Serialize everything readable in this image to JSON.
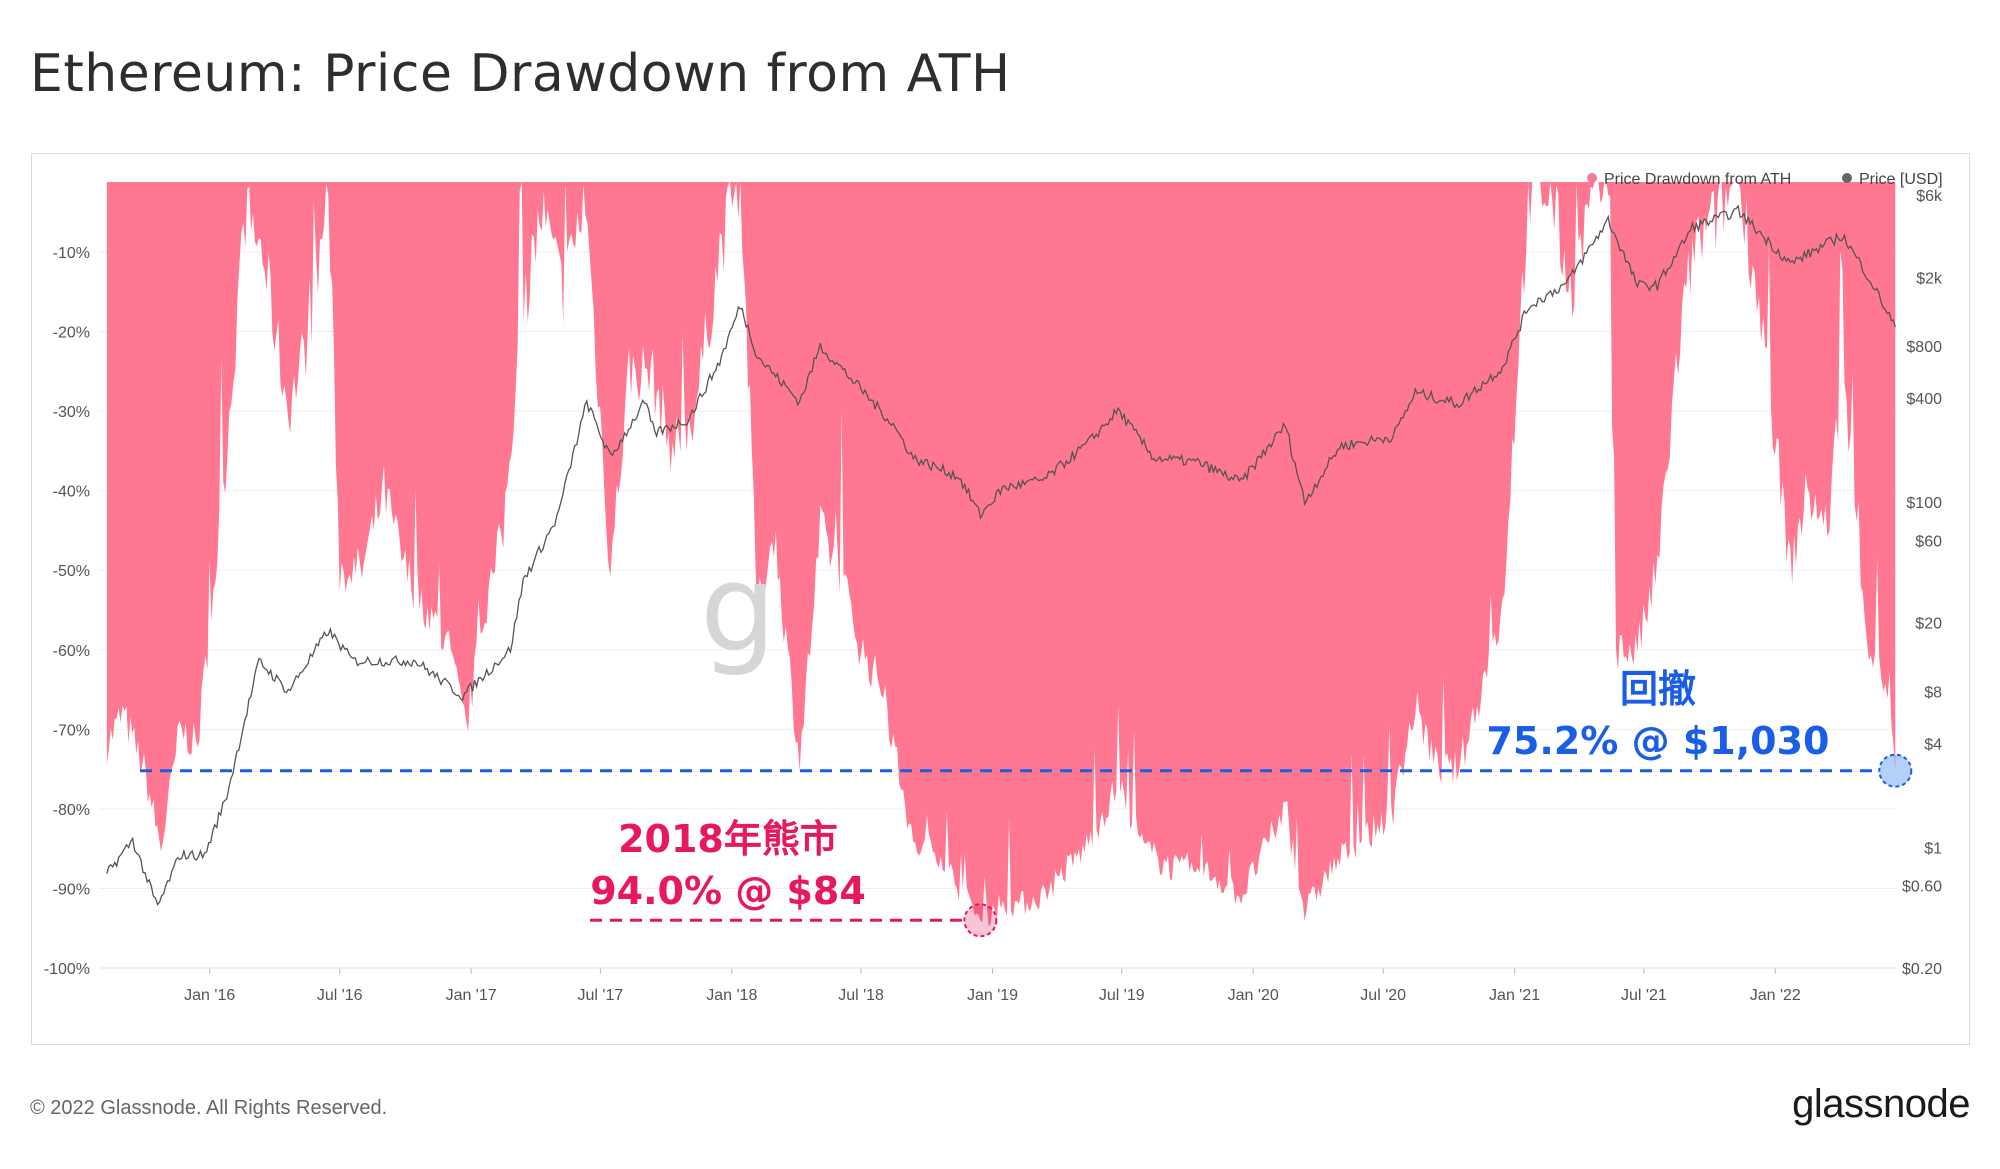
{
  "title": "Ethereum: Price Drawdown from ATH",
  "footer": "© 2022 Glassnode. All Rights Reserved.",
  "brand": "glassnode",
  "watermark": "g",
  "colors": {
    "drawdown": "#ff7790",
    "price": "#555555",
    "red": "#e8185c",
    "blue": "#1a5ee8"
  },
  "chart_data": {
    "type": "area",
    "legend": [
      {
        "name": "Price Drawdown from ATH",
        "color": "#f07d92"
      },
      {
        "name": "Price [USD]",
        "color": "#666666"
      }
    ],
    "legend_position": "top-right",
    "x_ticks": [
      "Jan '16",
      "Jul '16",
      "Jan '17",
      "Jul '17",
      "Jan '18",
      "Jul '18",
      "Jan '19",
      "Jul '19",
      "Jan '20",
      "Jul '20",
      "Jan '21",
      "Jul '21",
      "Jan '22"
    ],
    "y_left_ticks": [
      "-10%",
      "-20%",
      "-30%",
      "-40%",
      "-50%",
      "-60%",
      "-70%",
      "-80%",
      "-90%",
      "-100%"
    ],
    "y_right_ticks": [
      "$6k",
      "$2k",
      "$800",
      "$400",
      "$100",
      "$60",
      "$20",
      "$8",
      "$4",
      "$1",
      "$0.60",
      "$0.20"
    ],
    "y_left_range": [
      0,
      -100
    ],
    "y_right_scale": "log",
    "grid": true,
    "drawdown_series": {
      "name": "Price Drawdown from ATH",
      "points": [
        [
          "2015-08-10",
          -72
        ],
        [
          "2015-09-01",
          -68
        ],
        [
          "2015-10-01",
          -75
        ],
        [
          "2015-10-25",
          -85
        ],
        [
          "2015-11-20",
          -70
        ],
        [
          "2015-12-15",
          -72
        ],
        [
          "2016-01-20",
          -40
        ],
        [
          "2016-02-20",
          -5
        ],
        [
          "2016-03-15",
          -10
        ],
        [
          "2016-04-20",
          -30
        ],
        [
          "2016-05-20",
          -20
        ],
        [
          "2016-06-15",
          -2
        ],
        [
          "2016-07-01",
          -50
        ],
        [
          "2016-08-01",
          -50
        ],
        [
          "2016-09-01",
          -40
        ],
        [
          "2016-10-01",
          -50
        ],
        [
          "2016-11-01",
          -55
        ],
        [
          "2016-12-01",
          -60
        ],
        [
          "2016-12-25",
          -70
        ],
        [
          "2017-01-20",
          -55
        ],
        [
          "2017-02-15",
          -45
        ],
        [
          "2017-03-10",
          -20
        ],
        [
          "2017-04-10",
          -5
        ],
        [
          "2017-05-10",
          -15
        ],
        [
          "2017-06-10",
          -3
        ],
        [
          "2017-07-15",
          -50
        ],
        [
          "2017-08-10",
          -25
        ],
        [
          "2017-09-10",
          -25
        ],
        [
          "2017-10-10",
          -35
        ],
        [
          "2017-11-10",
          -30
        ],
        [
          "2017-12-15",
          -10
        ],
        [
          "2018-01-13",
          0
        ],
        [
          "2018-02-06",
          -55
        ],
        [
          "2018-03-01",
          -45
        ],
        [
          "2018-04-06",
          -74
        ],
        [
          "2018-05-05",
          -45
        ],
        [
          "2018-06-01",
          -50
        ],
        [
          "2018-07-01",
          -60
        ],
        [
          "2018-08-01",
          -65
        ],
        [
          "2018-09-12",
          -85
        ],
        [
          "2018-10-15",
          -85
        ],
        [
          "2018-11-15",
          -90
        ],
        [
          "2018-12-15",
          -94
        ],
        [
          "2019-01-10",
          -92
        ],
        [
          "2019-02-10",
          -92
        ],
        [
          "2019-03-10",
          -91
        ],
        [
          "2019-04-10",
          -88
        ],
        [
          "2019-05-10",
          -85
        ],
        [
          "2019-06-26",
          -77
        ],
        [
          "2019-08-01",
          -85
        ],
        [
          "2019-09-01",
          -87
        ],
        [
          "2019-10-01",
          -88
        ],
        [
          "2019-11-01",
          -88
        ],
        [
          "2019-12-15",
          -91
        ],
        [
          "2020-02-15",
          -80
        ],
        [
          "2020-03-13",
          -93
        ],
        [
          "2020-04-15",
          -88
        ],
        [
          "2020-05-15",
          -85
        ],
        [
          "2020-06-15",
          -83
        ],
        [
          "2020-07-15",
          -80
        ],
        [
          "2020-08-15",
          -67
        ],
        [
          "2020-09-15",
          -75
        ],
        [
          "2020-10-15",
          -75
        ],
        [
          "2020-11-15",
          -65
        ],
        [
          "2020-12-15",
          -55
        ],
        [
          "2021-01-20",
          -3
        ],
        [
          "2021-02-20",
          -2
        ],
        [
          "2021-03-20",
          -15
        ],
        [
          "2021-04-15",
          -5
        ],
        [
          "2021-05-12",
          0
        ],
        [
          "2021-05-23",
          -60
        ],
        [
          "2021-06-22",
          -60
        ],
        [
          "2021-07-20",
          -50
        ],
        [
          "2021-08-15",
          -25
        ],
        [
          "2021-09-07",
          -10
        ],
        [
          "2021-10-15",
          -5
        ],
        [
          "2021-11-10",
          0
        ],
        [
          "2021-12-15",
          -20
        ],
        [
          "2022-01-22",
          -50
        ],
        [
          "2022-02-15",
          -40
        ],
        [
          "2022-03-15",
          -45
        ],
        [
          "2022-04-05",
          -25
        ],
        [
          "2022-05-12",
          -60
        ],
        [
          "2022-06-10",
          -65
        ],
        [
          "2022-06-18",
          -75.2
        ]
      ]
    },
    "price_series": {
      "name": "Price [USD]",
      "points": [
        [
          "2015-08-10",
          0.7
        ],
        [
          "2015-09-15",
          1.1
        ],
        [
          "2015-10-20",
          0.45
        ],
        [
          "2015-11-20",
          0.9
        ],
        [
          "2015-12-25",
          0.9
        ],
        [
          "2016-01-25",
          2
        ],
        [
          "2016-03-10",
          12
        ],
        [
          "2016-04-20",
          8
        ],
        [
          "2016-06-15",
          18
        ],
        [
          "2016-07-20",
          12
        ],
        [
          "2016-09-01",
          12
        ],
        [
          "2016-10-15",
          12
        ],
        [
          "2016-12-20",
          7.5
        ],
        [
          "2017-01-20",
          10
        ],
        [
          "2017-02-25",
          14
        ],
        [
          "2017-03-15",
          35
        ],
        [
          "2017-05-01",
          80
        ],
        [
          "2017-06-12",
          380
        ],
        [
          "2017-07-15",
          180
        ],
        [
          "2017-09-01",
          380
        ],
        [
          "2017-09-15",
          250
        ],
        [
          "2017-11-01",
          300
        ],
        [
          "2017-12-15",
          650
        ],
        [
          "2018-01-13",
          1380
        ],
        [
          "2018-02-06",
          700
        ],
        [
          "2018-04-06",
          380
        ],
        [
          "2018-05-05",
          800
        ],
        [
          "2018-07-01",
          450
        ],
        [
          "2018-08-15",
          280
        ],
        [
          "2018-09-12",
          180
        ],
        [
          "2018-11-15",
          140
        ],
        [
          "2018-12-15",
          84
        ],
        [
          "2019-01-15",
          120
        ],
        [
          "2019-03-15",
          135
        ],
        [
          "2019-05-15",
          220
        ],
        [
          "2019-06-26",
          340
        ],
        [
          "2019-08-15",
          180
        ],
        [
          "2019-10-15",
          170
        ],
        [
          "2019-12-15",
          130
        ],
        [
          "2020-02-15",
          280
        ],
        [
          "2020-03-13",
          100
        ],
        [
          "2020-05-01",
          210
        ],
        [
          "2020-07-15",
          240
        ],
        [
          "2020-08-15",
          430
        ],
        [
          "2020-10-15",
          370
        ],
        [
          "2020-12-15",
          600
        ],
        [
          "2021-01-20",
          1350
        ],
        [
          "2021-03-15",
          1850
        ],
        [
          "2021-05-12",
          4300
        ],
        [
          "2021-06-22",
          1800
        ],
        [
          "2021-07-20",
          1800
        ],
        [
          "2021-09-07",
          3900
        ],
        [
          "2021-11-10",
          4850
        ],
        [
          "2022-01-22",
          2400
        ],
        [
          "2022-04-05",
          3500
        ],
        [
          "2022-05-12",
          2000
        ],
        [
          "2022-06-18",
          1030
        ]
      ]
    },
    "annotations": [
      {
        "label": "2018年熊市",
        "value": "94.0% @ $84",
        "date": "2018-12-15",
        "drawdown": -94.0,
        "color": "red"
      },
      {
        "label": "回撤",
        "value": "75.2% @ $1,030",
        "date": "2022-06-18",
        "drawdown": -75.2,
        "color": "blue"
      }
    ]
  }
}
